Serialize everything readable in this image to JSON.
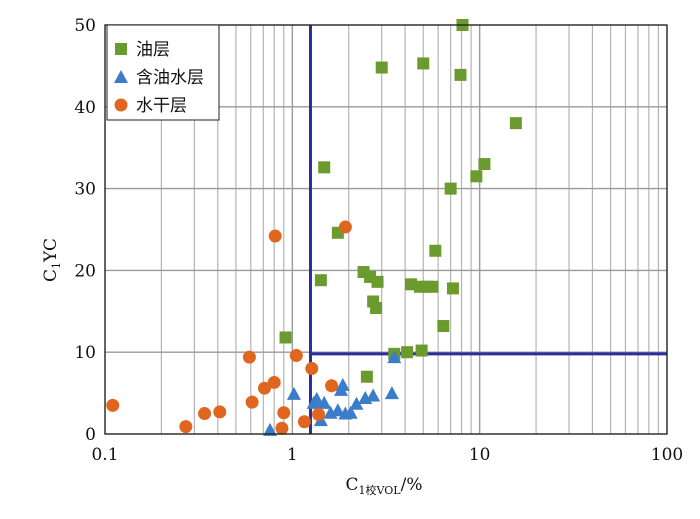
{
  "chart_data": {
    "type": "scatter",
    "title": "",
    "xscale": "log",
    "xlim": [
      0.1,
      100
    ],
    "ylim": [
      0,
      50
    ],
    "x_ticks": [
      "0.1",
      "1",
      "10",
      "100"
    ],
    "y_ticks": [
      "0",
      "10",
      "20",
      "30",
      "40",
      "50"
    ],
    "xlabel": {
      "main": "C",
      "sub": "1校VOL",
      "suffix": "/%"
    },
    "ylabel": {
      "main": "C",
      "sub": "1",
      "suffix": "YC"
    },
    "grid": true,
    "legend_position": "top-left",
    "thresholds": {
      "x": 1.25,
      "y": 9.8,
      "color": "#2b2f9e"
    },
    "series": [
      {
        "name": "油层",
        "marker": "square",
        "color": "#6b9a2e",
        "points": [
          [
            0.92,
            11.8
          ],
          [
            1.42,
            18.8
          ],
          [
            1.48,
            32.6
          ],
          [
            1.75,
            24.6
          ],
          [
            2.4,
            19.8
          ],
          [
            2.6,
            19.2
          ],
          [
            2.7,
            16.2
          ],
          [
            2.8,
            15.4
          ],
          [
            2.85,
            18.6
          ],
          [
            2.5,
            7.0
          ],
          [
            3.0,
            44.8
          ],
          [
            3.5,
            9.8
          ],
          [
            4.1,
            10.0
          ],
          [
            4.3,
            18.3
          ],
          [
            4.8,
            18.0
          ],
          [
            4.9,
            10.2
          ],
          [
            5.0,
            45.3
          ],
          [
            5.2,
            18.0
          ],
          [
            5.6,
            18.0
          ],
          [
            5.8,
            22.4
          ],
          [
            6.4,
            13.2
          ],
          [
            7.0,
            30.0
          ],
          [
            7.2,
            17.8
          ],
          [
            7.9,
            43.9
          ],
          [
            8.1,
            50.0
          ],
          [
            9.6,
            31.5
          ],
          [
            10.6,
            33.0
          ],
          [
            15.6,
            38.0
          ]
        ]
      },
      {
        "name": "含油水层",
        "marker": "triangle",
        "color": "#3d7cc9",
        "points": [
          [
            0.76,
            0.5
          ],
          [
            1.02,
            4.9
          ],
          [
            1.3,
            3.8
          ],
          [
            1.35,
            4.3
          ],
          [
            1.42,
            1.7
          ],
          [
            1.48,
            3.8
          ],
          [
            1.6,
            2.6
          ],
          [
            1.75,
            2.9
          ],
          [
            1.82,
            5.4
          ],
          [
            1.86,
            6.0
          ],
          [
            1.92,
            2.5
          ],
          [
            2.05,
            2.6
          ],
          [
            2.2,
            3.7
          ],
          [
            2.45,
            4.4
          ],
          [
            2.7,
            4.7
          ],
          [
            3.4,
            5.0
          ],
          [
            3.5,
            9.4
          ]
        ]
      },
      {
        "name": "水干层",
        "marker": "circle",
        "color": "#e0661f",
        "points": [
          [
            0.11,
            3.5
          ],
          [
            0.27,
            0.9
          ],
          [
            0.34,
            2.5
          ],
          [
            0.41,
            2.7
          ],
          [
            0.59,
            9.4
          ],
          [
            0.61,
            3.9
          ],
          [
            0.71,
            5.6
          ],
          [
            0.8,
            6.3
          ],
          [
            0.81,
            24.2
          ],
          [
            0.88,
            0.7
          ],
          [
            0.9,
            2.6
          ],
          [
            1.05,
            9.6
          ],
          [
            1.16,
            1.5
          ],
          [
            1.27,
            8.0
          ],
          [
            1.38,
            2.4
          ],
          [
            1.62,
            5.9
          ],
          [
            1.92,
            25.3
          ]
        ]
      }
    ]
  }
}
